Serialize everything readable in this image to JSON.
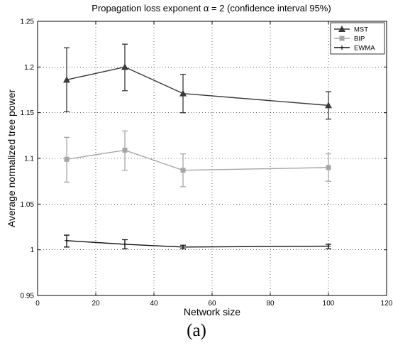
{
  "chart_data": {
    "type": "line",
    "title": "Propagation loss exponent α = 2 (confidence interval 95%)",
    "xlabel": "Network size",
    "ylabel": "Average normalized tree power",
    "xlim": [
      0,
      120
    ],
    "ylim": [
      0.95,
      1.25
    ],
    "xticks": [
      "0",
      "20",
      "40",
      "60",
      "80",
      "100",
      "120"
    ],
    "yticks": [
      "0.95",
      "1",
      "1.05",
      "1.1",
      "1.15",
      "1.2",
      "1.25"
    ],
    "grid": "dotted",
    "legend_position": "top-right",
    "x": [
      10,
      30,
      50,
      100
    ],
    "series": [
      {
        "name": "MST",
        "marker": "triangle",
        "color": "#3a3a3a",
        "values": [
          1.186,
          1.2,
          1.171,
          1.158
        ],
        "err_low": [
          1.151,
          1.174,
          1.15,
          1.143
        ],
        "err_high": [
          1.221,
          1.225,
          1.192,
          1.173
        ]
      },
      {
        "name": "BIP",
        "marker": "square",
        "color": "#a6a6a6",
        "values": [
          1.099,
          1.109,
          1.087,
          1.09
        ],
        "err_low": [
          1.074,
          1.087,
          1.069,
          1.075
        ],
        "err_high": [
          1.123,
          1.13,
          1.105,
          1.105
        ]
      },
      {
        "name": "EWMA",
        "marker": "plus",
        "color": "#111111",
        "values": [
          1.01,
          1.006,
          1.003,
          1.004
        ],
        "err_low": [
          1.003,
          1.001,
          1.001,
          1.001
        ],
        "err_high": [
          1.016,
          1.011,
          1.005,
          1.006
        ]
      }
    ]
  },
  "caption": "(a)"
}
